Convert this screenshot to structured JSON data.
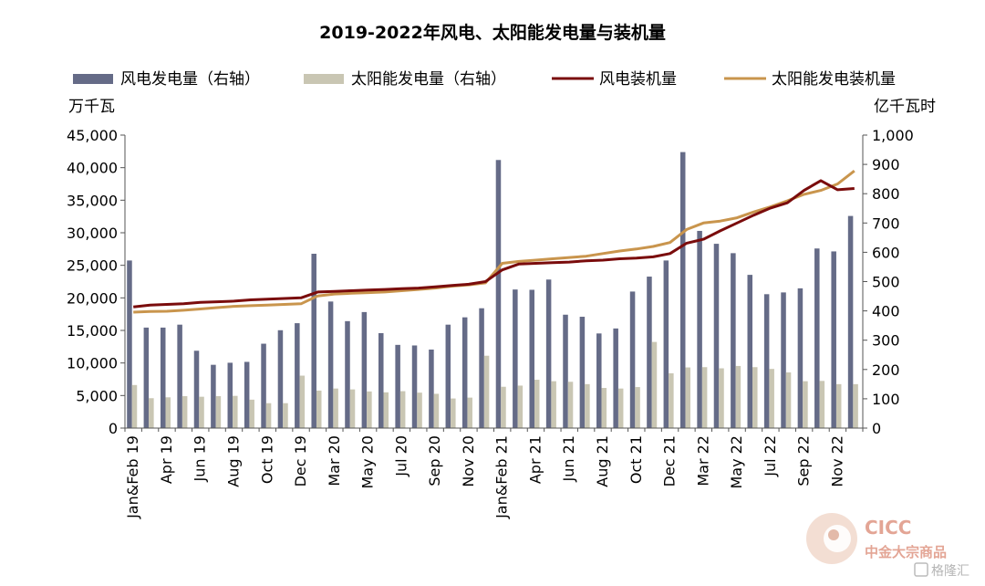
{
  "chart_data": {
    "type": "bar+line",
    "title": "2019-2022年风电、太阳能发电量与装机量",
    "left_unit": "万千瓦",
    "right_unit": "亿千瓦时",
    "left_ylim": [
      0,
      45000
    ],
    "right_ylim": [
      0,
      1000
    ],
    "left_ticks": [
      "0",
      "5,000",
      "10,000",
      "15,000",
      "20,000",
      "25,000",
      "30,000",
      "35,000",
      "40,000",
      "45,000"
    ],
    "right_ticks": [
      "0",
      "100",
      "200",
      "300",
      "400",
      "500",
      "600",
      "700",
      "800",
      "900",
      "1,000"
    ],
    "x_tick_labels": [
      "Jan&Feb 19",
      "Apr 19",
      "Jun 19",
      "Aug 19",
      "Oct 19",
      "Dec 19",
      "Mar 20",
      "May 20",
      "Jul 20",
      "Sep 20",
      "Nov 20",
      "Jan&Feb 21",
      "Apr 21",
      "Jun 21",
      "Aug 21",
      "Oct 21",
      "Dec 21",
      "Mar 22",
      "May 22",
      "Jul 22",
      "Sep 22",
      "Nov 22"
    ],
    "x_tick_indices": [
      0,
      2,
      4,
      6,
      8,
      10,
      12,
      14,
      16,
      18,
      20,
      22,
      24,
      26,
      28,
      30,
      32,
      34,
      36,
      38,
      40,
      42
    ],
    "colors": {
      "wind_gen": "#656b87",
      "solar_gen": "#c9c6b3",
      "wind_cap": "#7a0c0c",
      "solar_cap": "#c9954d"
    },
    "series": [
      {
        "name": "风电发电量（右轴）",
        "kind": "bar",
        "axis": "right",
        "values": [
          572,
          343,
          343,
          353,
          264,
          216,
          223,
          226,
          288,
          334,
          358,
          595,
          432,
          365,
          396,
          324,
          284,
          282,
          268,
          353,
          378,
          409,
          915,
          473,
          472,
          507,
          387,
          380,
          323,
          340,
          466,
          517,
          572,
          942,
          673,
          629,
          597,
          523,
          457,
          463,
          477,
          613,
          603,
          724
        ]
      },
      {
        "name": "太阳能发电量（右轴）",
        "kind": "bar",
        "axis": "right",
        "values": [
          147,
          102,
          105,
          109,
          107,
          109,
          110,
          97,
          85,
          85,
          179,
          128,
          135,
          132,
          125,
          122,
          126,
          121,
          117,
          101,
          104,
          247,
          141,
          145,
          165,
          160,
          158,
          150,
          137,
          135,
          140,
          294,
          187,
          207,
          208,
          204,
          212,
          208,
          202,
          190,
          160,
          161,
          150,
          150
        ]
      },
      {
        "name": "风电装机量",
        "kind": "line",
        "axis": "left",
        "values": [
          18600,
          18900,
          19000,
          19100,
          19300,
          19400,
          19500,
          19700,
          19800,
          19900,
          20000,
          20900,
          21000,
          21100,
          21200,
          21300,
          21400,
          21500,
          21700,
          21900,
          22100,
          22500,
          24300,
          25200,
          25300,
          25400,
          25500,
          25700,
          25800,
          26000,
          26100,
          26300,
          26800,
          28400,
          29000,
          30300,
          31500,
          32700,
          33800,
          34600,
          36500,
          38000,
          36600,
          36800
        ]
      },
      {
        "name": "太阳能发电装机量",
        "kind": "line",
        "axis": "left",
        "values": [
          17800,
          17900,
          17950,
          18100,
          18300,
          18500,
          18700,
          18800,
          18900,
          19000,
          19100,
          20300,
          20600,
          20700,
          20800,
          20900,
          21100,
          21300,
          21500,
          21800,
          22000,
          22300,
          25300,
          25600,
          25800,
          26000,
          26200,
          26400,
          26800,
          27200,
          27500,
          27900,
          28500,
          30500,
          31500,
          31800,
          32300,
          33200,
          34000,
          34900,
          35900,
          36500,
          37500,
          39500
        ]
      }
    ]
  },
  "logo": {
    "en": "CICC",
    "cn": "中金大宗商品",
    "watermark": "格隆汇"
  }
}
